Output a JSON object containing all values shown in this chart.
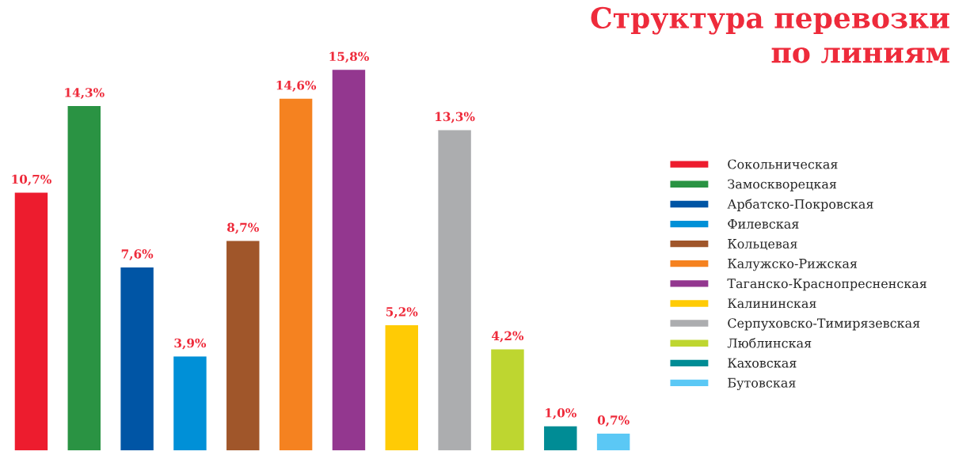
{
  "chart_data": {
    "type": "bar",
    "title": "Структура перевозки\nпо линиям",
    "categories": [
      null,
      null,
      null,
      null,
      null,
      null,
      null,
      null,
      null,
      null,
      null,
      null
    ],
    "series": [
      {
        "name": "Сокольническая",
        "color": "#ed1c2e",
        "values": [
          10.7,
          null,
          null,
          null,
          null,
          null,
          null,
          null,
          null,
          null,
          null,
          null
        ],
        "value_labels": [
          "10,7%",
          null,
          null,
          null,
          null,
          null,
          null,
          null,
          null,
          null,
          null,
          null
        ]
      },
      {
        "name": "Замоскворецкая",
        "color": "#2a9343",
        "values": [
          null,
          14.3,
          null,
          null,
          null,
          null,
          null,
          null,
          null,
          null,
          null,
          null
        ],
        "value_labels": [
          null,
          "14,3%",
          null,
          null,
          null,
          null,
          null,
          null,
          null,
          null,
          null,
          null
        ]
      },
      {
        "name": "Арбатско-Покровская",
        "color": "#0055a5",
        "values": [
          null,
          null,
          7.6,
          null,
          null,
          null,
          null,
          null,
          null,
          null,
          null,
          null
        ],
        "value_labels": [
          null,
          null,
          "7,6%",
          null,
          null,
          null,
          null,
          null,
          null,
          null,
          null,
          null
        ]
      },
      {
        "name": "Филевская",
        "color": "#0090d7",
        "values": [
          null,
          null,
          null,
          3.9,
          null,
          null,
          null,
          null,
          null,
          null,
          null,
          null
        ],
        "value_labels": [
          null,
          null,
          null,
          "3,9%",
          null,
          null,
          null,
          null,
          null,
          null,
          null,
          null
        ]
      },
      {
        "name": "Кольцевая",
        "color": "#a0562a",
        "values": [
          null,
          null,
          null,
          null,
          8.7,
          null,
          null,
          null,
          null,
          null,
          null,
          null
        ],
        "value_labels": [
          null,
          null,
          null,
          null,
          "8,7%",
          null,
          null,
          null,
          null,
          null,
          null,
          null
        ]
      },
      {
        "name": "Калужско-Рижская",
        "color": "#f58220",
        "values": [
          null,
          null,
          null,
          null,
          null,
          14.6,
          null,
          null,
          null,
          null,
          null,
          null
        ],
        "value_labels": [
          null,
          null,
          null,
          null,
          null,
          "14,6%",
          null,
          null,
          null,
          null,
          null,
          null
        ]
      },
      {
        "name": "Таганско-Краснопресненская",
        "color": "#93378f",
        "values": [
          null,
          null,
          null,
          null,
          null,
          null,
          15.8,
          null,
          null,
          null,
          null,
          null
        ],
        "value_labels": [
          null,
          null,
          null,
          null,
          null,
          null,
          "15,8%",
          null,
          null,
          null,
          null,
          null
        ]
      },
      {
        "name": "Калининская",
        "color": "#ffcb05",
        "values": [
          null,
          null,
          null,
          null,
          null,
          null,
          null,
          5.2,
          null,
          null,
          null,
          null
        ],
        "value_labels": [
          null,
          null,
          null,
          null,
          null,
          null,
          null,
          "5,2%",
          null,
          null,
          null,
          null
        ]
      },
      {
        "name": "Серпуховско-Тимирязевская",
        "color": "#acadaf",
        "values": [
          null,
          null,
          null,
          null,
          null,
          null,
          null,
          null,
          13.3,
          null,
          null,
          null
        ],
        "value_labels": [
          null,
          null,
          null,
          null,
          null,
          null,
          null,
          null,
          "13,3%",
          null,
          null,
          null
        ]
      },
      {
        "name": "Люблинская",
        "color": "#bed630",
        "values": [
          null,
          null,
          null,
          null,
          null,
          null,
          null,
          null,
          null,
          4.2,
          null,
          null
        ],
        "value_labels": [
          null,
          null,
          null,
          null,
          null,
          null,
          null,
          null,
          null,
          "4,2%",
          null,
          null
        ]
      },
      {
        "name": "Каховская",
        "color": "#008c95",
        "values": [
          null,
          null,
          null,
          null,
          null,
          null,
          null,
          null,
          null,
          null,
          1.0,
          null
        ],
        "value_labels": [
          null,
          null,
          null,
          null,
          null,
          null,
          null,
          null,
          null,
          null,
          "1,0%",
          null
        ]
      },
      {
        "name": "Бутовская",
        "color": "#5bc8f5",
        "values": [
          null,
          null,
          null,
          null,
          null,
          null,
          null,
          null,
          null,
          null,
          null,
          0.7
        ],
        "value_labels": [
          null,
          null,
          null,
          null,
          null,
          null,
          null,
          null,
          null,
          null,
          null,
          "0,7%"
        ]
      }
    ],
    "stacked": true,
    "legend": "right",
    "grid": false
  }
}
